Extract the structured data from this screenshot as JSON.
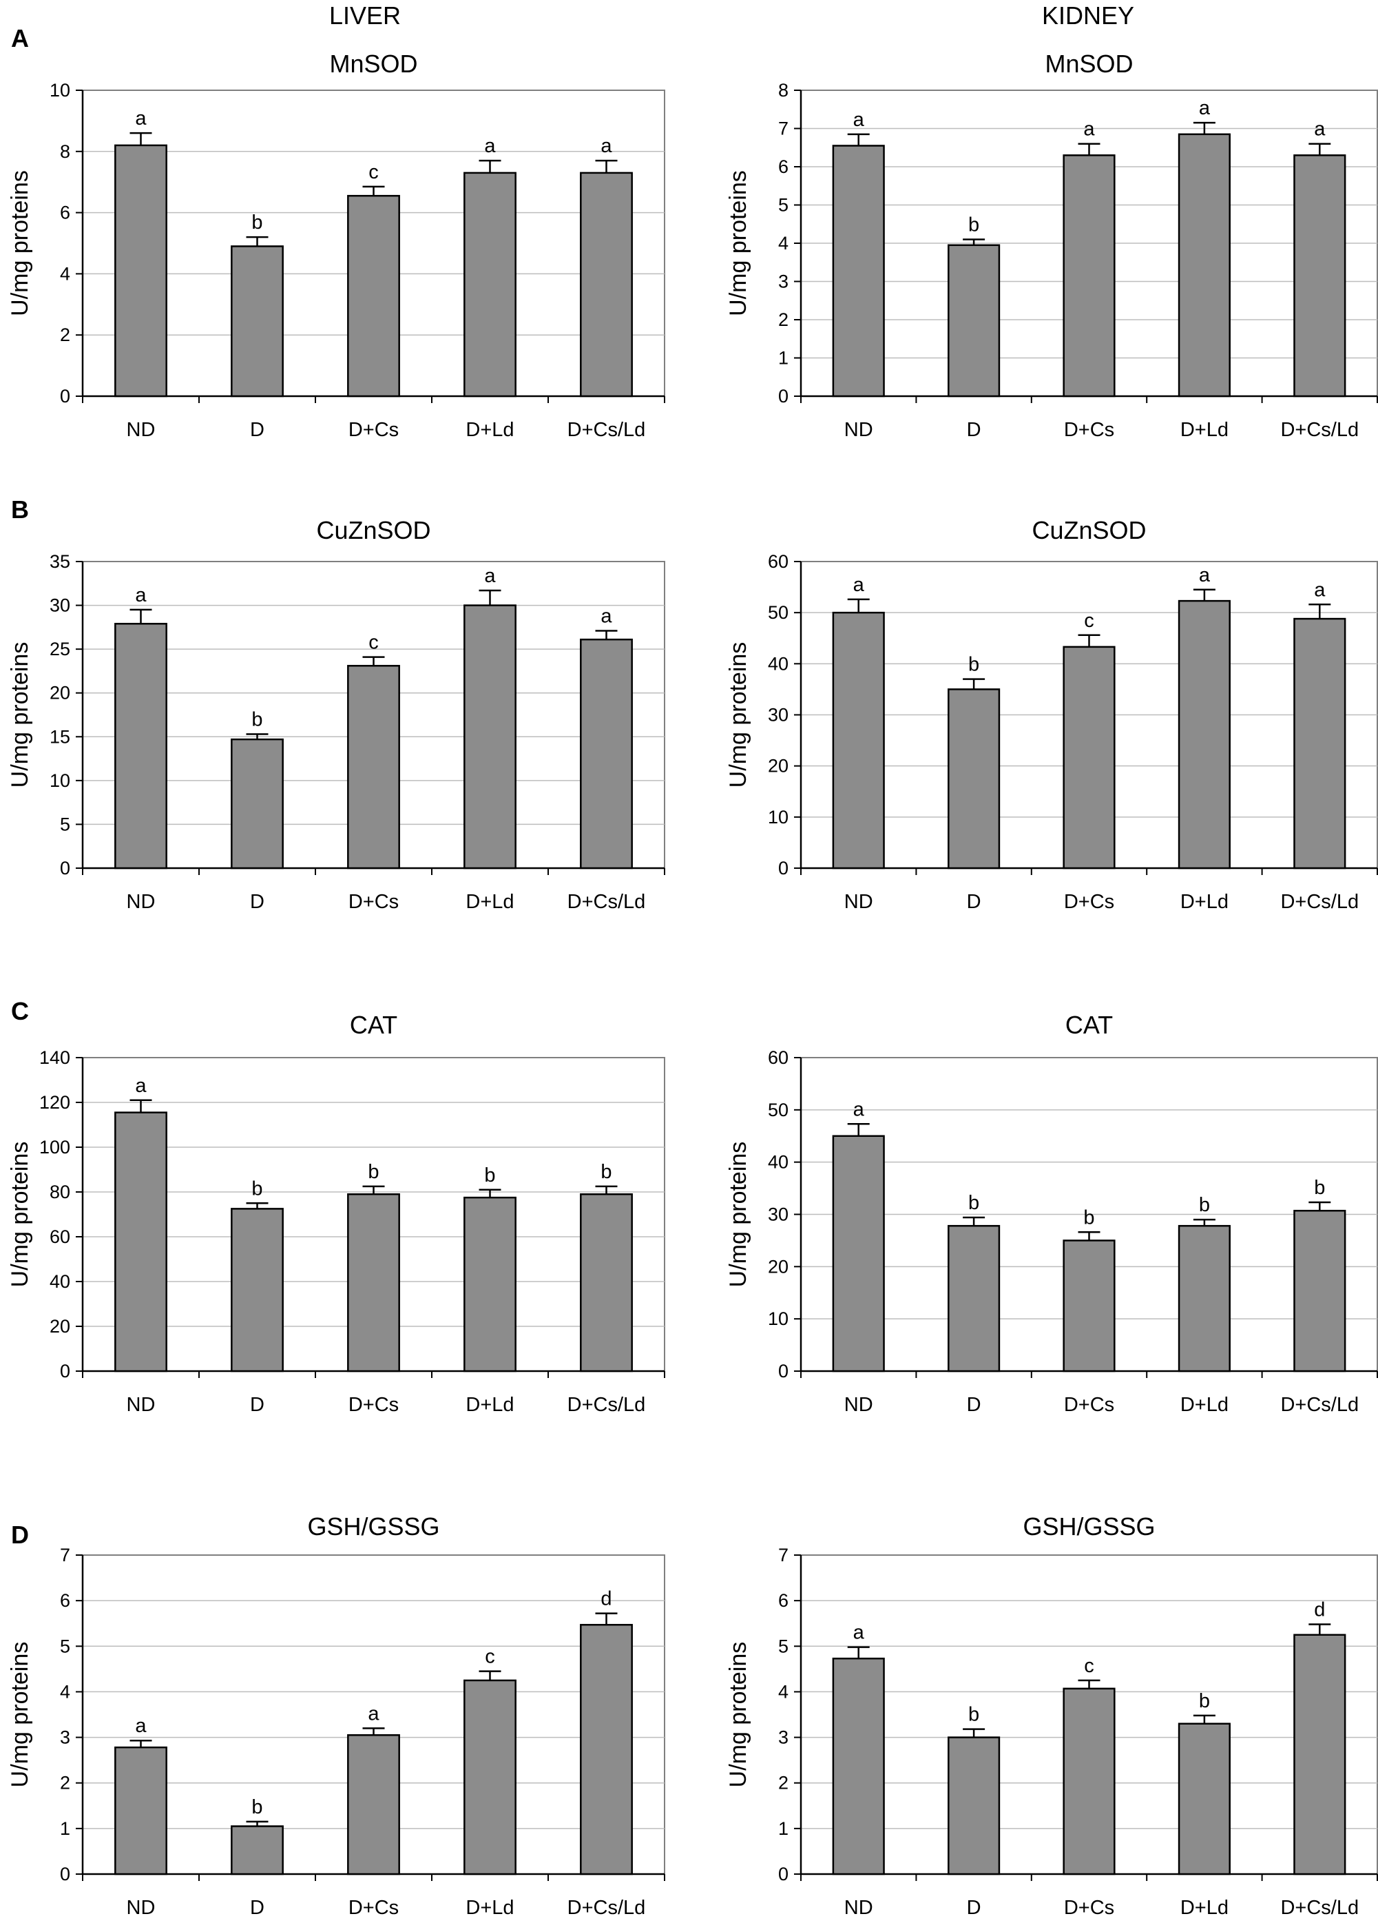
{
  "column_titles": {
    "left": "LIVER",
    "right": "KIDNEY"
  },
  "panel_letters": [
    "A",
    "B",
    "C",
    "D"
  ],
  "colors": {
    "bar_fill": "#8c8c8c",
    "bar_stroke": "#000000",
    "axis": "#000000",
    "grid": "#bdbdbd",
    "frame": "#7f7f7f",
    "text": "#000000"
  },
  "chart_data": [
    {
      "id": "liver-mnsod",
      "type": "bar",
      "panel": "A",
      "organ": "LIVER",
      "title": "MnSOD",
      "xlabel": "",
      "ylabel": "U/mg proteins",
      "categories": [
        "ND",
        "D",
        "D+Cs",
        "D+Ld",
        "D+Cs/Ld"
      ],
      "values": [
        8.2,
        4.9,
        6.55,
        7.3,
        7.3
      ],
      "errors": [
        0.4,
        0.3,
        0.3,
        0.4,
        0.4
      ],
      "labels": [
        "a",
        "b",
        "c",
        "a",
        "a"
      ],
      "ylim": [
        0,
        10
      ],
      "yticks": [
        0,
        2,
        4,
        6,
        8,
        10
      ],
      "grid": true
    },
    {
      "id": "kidney-mnsod",
      "type": "bar",
      "panel": "A",
      "organ": "KIDNEY",
      "title": "MnSOD",
      "xlabel": "",
      "ylabel": "U/mg proteins",
      "categories": [
        "ND",
        "D",
        "D+Cs",
        "D+Ld",
        "D+Cs/Ld"
      ],
      "values": [
        6.55,
        3.95,
        6.3,
        6.85,
        6.3
      ],
      "errors": [
        0.3,
        0.15,
        0.3,
        0.3,
        0.3
      ],
      "labels": [
        "a",
        "b",
        "a",
        "a",
        "a"
      ],
      "ylim": [
        0,
        8
      ],
      "yticks": [
        0,
        1,
        2,
        3,
        4,
        5,
        6,
        7,
        8
      ],
      "grid": true
    },
    {
      "id": "liver-cuznsod",
      "type": "bar",
      "panel": "B",
      "organ": "LIVER",
      "title": "CuZnSOD",
      "xlabel": "",
      "ylabel": "U/mg proteins",
      "categories": [
        "ND",
        "D",
        "D+Cs",
        "D+Ld",
        "D+Cs/Ld"
      ],
      "values": [
        27.9,
        14.7,
        23.1,
        30.0,
        26.1
      ],
      "errors": [
        1.6,
        0.6,
        1.0,
        1.7,
        1.0
      ],
      "labels": [
        "a",
        "b",
        "c",
        "a",
        "a"
      ],
      "ylim": [
        0,
        35
      ],
      "yticks": [
        0,
        5,
        10,
        15,
        20,
        25,
        30,
        35
      ],
      "grid": true
    },
    {
      "id": "kidney-cuznsod",
      "type": "bar",
      "panel": "B",
      "organ": "KIDNEY",
      "title": "CuZnSOD",
      "xlabel": "",
      "ylabel": "U/mg proteins",
      "categories": [
        "ND",
        "D",
        "D+Cs",
        "D+Ld",
        "D+Cs/Ld"
      ],
      "values": [
        50.0,
        35.0,
        43.3,
        52.3,
        48.8
      ],
      "errors": [
        2.6,
        2.0,
        2.3,
        2.2,
        2.8
      ],
      "labels": [
        "a",
        "b",
        "c",
        "a",
        "a"
      ],
      "ylim": [
        0,
        60
      ],
      "yticks": [
        0,
        10,
        20,
        30,
        40,
        50,
        60
      ],
      "grid": true
    },
    {
      "id": "liver-cat",
      "type": "bar",
      "panel": "C",
      "organ": "LIVER",
      "title": "CAT",
      "xlabel": "",
      "ylabel": "U/mg proteins",
      "categories": [
        "ND",
        "D",
        "D+Cs",
        "D+Ld",
        "D+Cs/Ld"
      ],
      "values": [
        115.5,
        72.5,
        79.0,
        77.5,
        79.0
      ],
      "errors": [
        5.5,
        2.5,
        3.5,
        3.5,
        3.5
      ],
      "labels": [
        "a",
        "b",
        "b",
        "b",
        "b"
      ],
      "ylim": [
        0,
        140
      ],
      "yticks": [
        0,
        20,
        40,
        60,
        80,
        100,
        120,
        140
      ],
      "grid": true
    },
    {
      "id": "kidney-cat",
      "type": "bar",
      "panel": "C",
      "organ": "KIDNEY",
      "title": "CAT",
      "xlabel": "",
      "ylabel": "U/mg proteins",
      "categories": [
        "ND",
        "D",
        "D+Cs",
        "D+Ld",
        "D+Cs/Ld"
      ],
      "values": [
        45.0,
        27.8,
        25.0,
        27.8,
        30.7
      ],
      "errors": [
        2.3,
        1.6,
        1.6,
        1.2,
        1.6
      ],
      "labels": [
        "a",
        "b",
        "b",
        "b",
        "b"
      ],
      "ylim": [
        0,
        60
      ],
      "yticks": [
        0,
        10,
        20,
        30,
        40,
        50,
        60
      ],
      "grid": true
    },
    {
      "id": "liver-gsh-gssg",
      "type": "bar",
      "panel": "D",
      "organ": "LIVER",
      "title": "GSH/GSSG",
      "xlabel": "",
      "ylabel": "U/mg proteins",
      "categories": [
        "ND",
        "D",
        "D+Cs",
        "D+Ld",
        "D+Cs/Ld"
      ],
      "values": [
        2.78,
        1.05,
        3.05,
        4.25,
        5.47
      ],
      "errors": [
        0.15,
        0.1,
        0.15,
        0.2,
        0.25
      ],
      "labels": [
        "a",
        "b",
        "a",
        "c",
        "d"
      ],
      "ylim": [
        0,
        7
      ],
      "yticks": [
        0,
        1,
        2,
        3,
        4,
        5,
        6,
        7
      ],
      "grid": true
    },
    {
      "id": "kidney-gsh-gssg",
      "type": "bar",
      "panel": "D",
      "organ": "KIDNEY",
      "title": "GSH/GSSG",
      "xlabel": "",
      "ylabel": "U/mg proteins",
      "categories": [
        "ND",
        "D",
        "D+Cs",
        "D+Ld",
        "D+Cs/Ld"
      ],
      "values": [
        4.73,
        3.0,
        4.07,
        3.3,
        5.25
      ],
      "errors": [
        0.25,
        0.18,
        0.18,
        0.18,
        0.23
      ],
      "labels": [
        "a",
        "b",
        "c",
        "b",
        "d"
      ],
      "ylim": [
        0,
        7
      ],
      "yticks": [
        0,
        1,
        2,
        3,
        4,
        5,
        6,
        7
      ],
      "grid": true
    }
  ]
}
